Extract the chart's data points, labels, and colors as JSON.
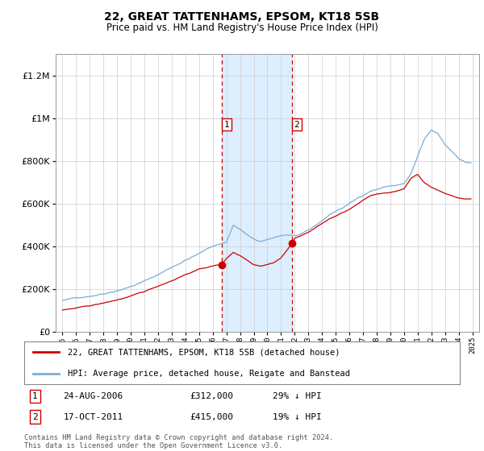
{
  "title": "22, GREAT TATTENHAMS, EPSOM, KT18 5SB",
  "subtitle": "Price paid vs. HM Land Registry's House Price Index (HPI)",
  "hpi_label": "HPI: Average price, detached house, Reigate and Banstead",
  "property_label": "22, GREAT TATTENHAMS, EPSOM, KT18 5SB (detached house)",
  "footnote": "Contains HM Land Registry data © Crown copyright and database right 2024.\nThis data is licensed under the Open Government Licence v3.0.",
  "sale1_label": "1",
  "sale1_date": "24-AUG-2006",
  "sale1_price": "£312,000",
  "sale1_hpi": "29% ↓ HPI",
  "sale2_label": "2",
  "sale2_date": "17-OCT-2011",
  "sale2_price": "£415,000",
  "sale2_hpi": "19% ↓ HPI",
  "sale1_x": 2006.65,
  "sale1_y": 312000,
  "sale2_x": 2011.79,
  "sale2_y": 415000,
  "property_color": "#cc0000",
  "hpi_color": "#7aadd4",
  "shade_color": "#ddeeff",
  "ylim": [
    0,
    1300000
  ],
  "xlim": [
    1994.5,
    2025.5
  ],
  "background_color": "#ffffff",
  "grid_color": "#cccccc",
  "hpi_seed": 42,
  "hpi_base_years": [
    1995.0,
    1996.0,
    1997.0,
    1998.0,
    1999.0,
    2000.0,
    2001.0,
    2002.0,
    2003.0,
    2004.0,
    2005.0,
    2006.0,
    2007.0,
    2007.5,
    2008.0,
    2008.5,
    2009.0,
    2009.5,
    2010.0,
    2010.5,
    2011.0,
    2011.5,
    2012.0,
    2012.5,
    2013.0,
    2013.5,
    2014.0,
    2014.5,
    2015.0,
    2015.5,
    2016.0,
    2016.5,
    2017.0,
    2017.5,
    2018.0,
    2018.5,
    2019.0,
    2019.5,
    2020.0,
    2020.5,
    2021.0,
    2021.5,
    2022.0,
    2022.5,
    2023.0,
    2023.5,
    2024.0,
    2024.5
  ],
  "hpi_base_values": [
    145000,
    155000,
    168000,
    182000,
    200000,
    220000,
    245000,
    275000,
    310000,
    345000,
    375000,
    410000,
    430000,
    510000,
    490000,
    465000,
    440000,
    430000,
    435000,
    445000,
    455000,
    460000,
    455000,
    460000,
    475000,
    495000,
    520000,
    545000,
    565000,
    580000,
    600000,
    620000,
    640000,
    660000,
    670000,
    680000,
    685000,
    690000,
    695000,
    740000,
    820000,
    900000,
    940000,
    920000,
    870000,
    840000,
    810000,
    790000
  ],
  "prop_base_years": [
    1995.0,
    1996.0,
    1997.0,
    1998.0,
    1999.0,
    2000.0,
    2001.0,
    2002.0,
    2003.0,
    2004.0,
    2005.0,
    2006.0,
    2006.65,
    2007.0,
    2007.5,
    2008.0,
    2008.5,
    2009.0,
    2009.5,
    2010.0,
    2010.5,
    2011.0,
    2011.79,
    2012.0,
    2012.5,
    2013.0,
    2013.5,
    2014.0,
    2014.5,
    2015.0,
    2015.5,
    2016.0,
    2016.5,
    2017.0,
    2017.5,
    2018.0,
    2018.5,
    2019.0,
    2019.5,
    2020.0,
    2020.5,
    2021.0,
    2021.5,
    2022.0,
    2022.5,
    2023.0,
    2023.5,
    2024.0,
    2024.5
  ],
  "prop_base_values": [
    100000,
    108000,
    118000,
    130000,
    145000,
    162000,
    182000,
    208000,
    235000,
    265000,
    290000,
    305000,
    312000,
    340000,
    370000,
    355000,
    335000,
    315000,
    310000,
    318000,
    328000,
    350000,
    415000,
    440000,
    455000,
    470000,
    490000,
    510000,
    530000,
    545000,
    560000,
    575000,
    595000,
    615000,
    635000,
    645000,
    650000,
    655000,
    660000,
    670000,
    720000,
    740000,
    700000,
    680000,
    665000,
    650000,
    640000,
    630000,
    625000
  ],
  "prop_noise_scale": 8000,
  "hpi_noise_scale": 12000
}
